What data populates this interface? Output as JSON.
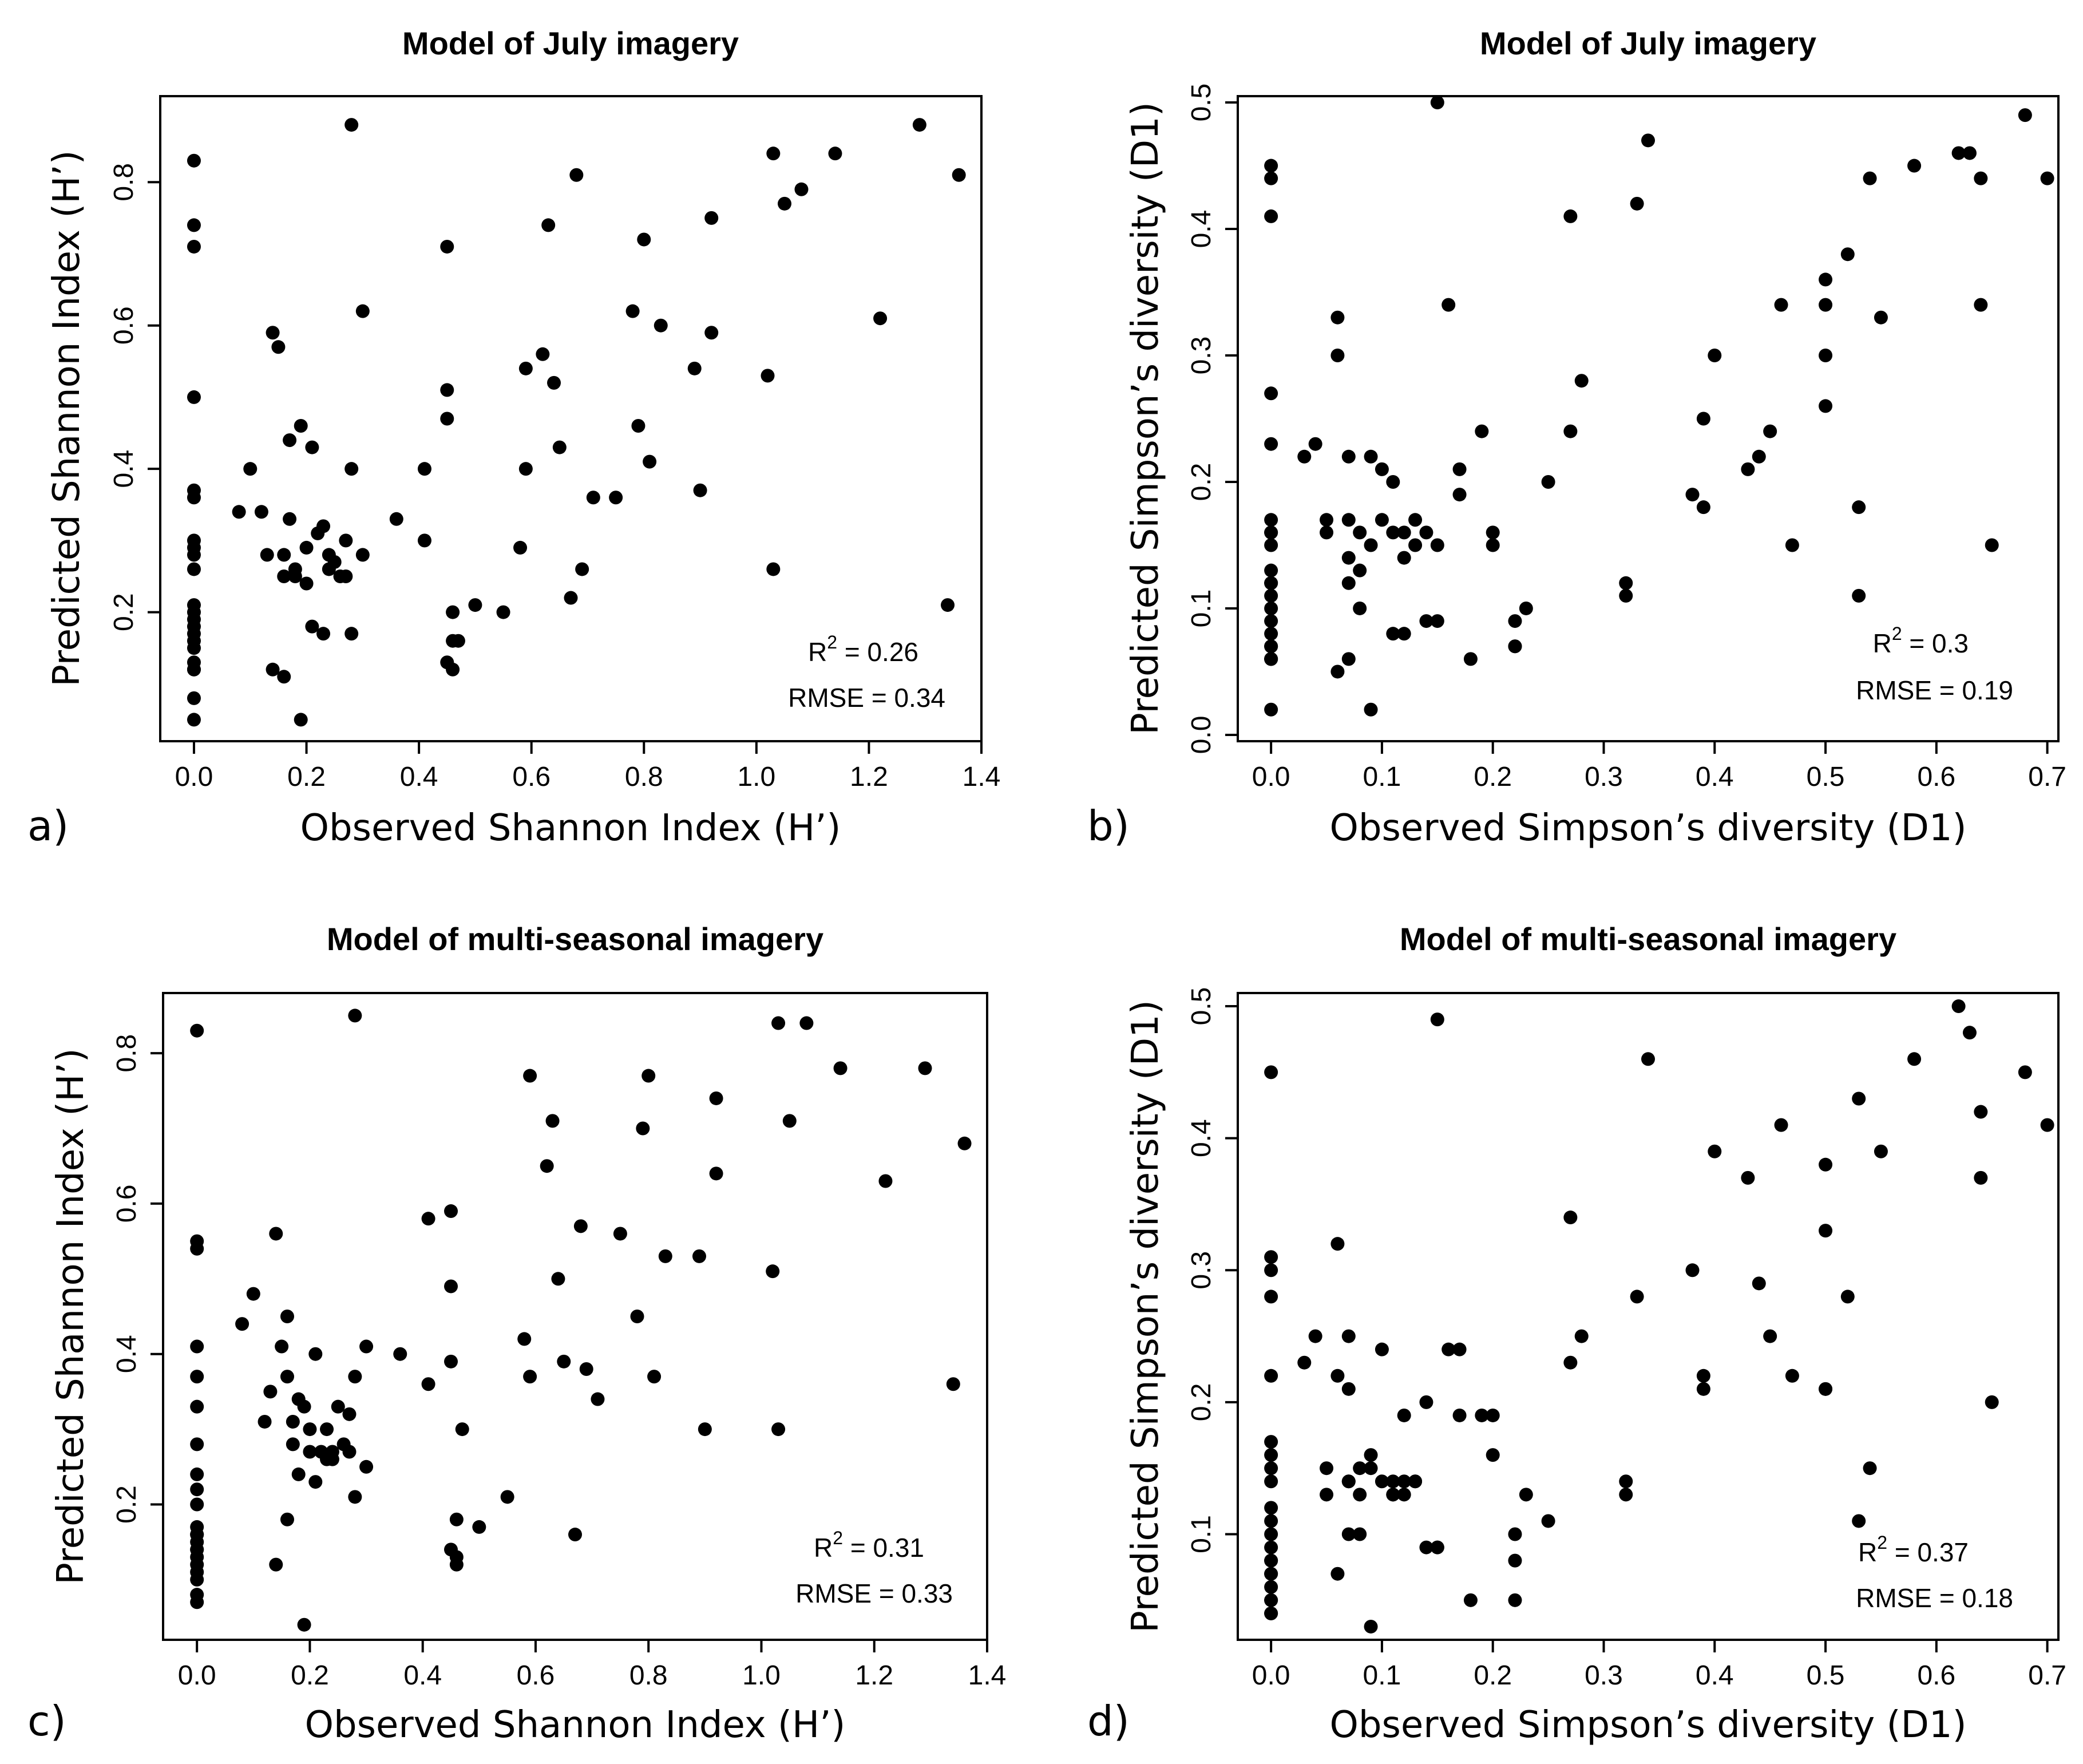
{
  "figure": {
    "panels": [
      "a",
      "b",
      "c",
      "d"
    ]
  },
  "chart_data": [
    {
      "type": "scatter",
      "panel_label": "a)",
      "title": "Model of July imagery",
      "xlabel": "Observed Shannon Index (H’)",
      "ylabel": "Predicted Shannon Index (H’)",
      "xlim": [
        -0.06,
        1.4
      ],
      "ylim": [
        0.02,
        0.92
      ],
      "xticks": [
        0.0,
        0.2,
        0.4,
        0.6,
        0.8,
        1.0,
        1.2,
        1.4
      ],
      "xtick_labels": [
        "0.0",
        "0.2",
        "0.4",
        "0.6",
        "0.8",
        "1.0",
        "1.2",
        "1.4"
      ],
      "yticks": [
        0.2,
        0.4,
        0.6,
        0.8
      ],
      "ytick_labels": [
        "0.2",
        "0.4",
        "0.6",
        "0.8"
      ],
      "stats": {
        "r2_label": "R",
        "r2_sup": "2",
        "r2_value": " = 0.26",
        "rmse": "RMSE = 0.34"
      },
      "x": [
        0,
        0,
        0,
        0,
        0,
        0,
        0,
        0,
        0,
        0,
        0,
        0,
        0,
        0,
        0,
        0,
        0,
        0,
        0,
        0,
        0,
        0,
        0.08,
        0.1,
        0.12,
        0.13,
        0.14,
        0.14,
        0.15,
        0.16,
        0.16,
        0.16,
        0.17,
        0.17,
        0.18,
        0.18,
        0.19,
        0.19,
        0.2,
        0.2,
        0.21,
        0.21,
        0.22,
        0.23,
        0.23,
        0.24,
        0.24,
        0.25,
        0.26,
        0.27,
        0.27,
        0.28,
        0.28,
        0.28,
        0.3,
        0.3,
        0.36,
        0.41,
        0.41,
        0.45,
        0.45,
        0.45,
        0.45,
        0.46,
        0.46,
        0.46,
        0.47,
        0.5,
        0.55,
        0.58,
        0.59,
        0.59,
        0.62,
        0.63,
        0.64,
        0.65,
        0.67,
        0.68,
        0.69,
        0.71,
        0.75,
        0.78,
        0.79,
        0.8,
        0.81,
        0.83,
        0.89,
        0.9,
        0.92,
        0.92,
        1.02,
        1.03,
        1.03,
        1.05,
        1.08,
        1.14,
        1.22,
        1.29,
        1.34,
        1.36
      ],
      "y": [
        0.83,
        0.74,
        0.71,
        0.5,
        0.37,
        0.36,
        0.3,
        0.29,
        0.28,
        0.26,
        0.21,
        0.2,
        0.19,
        0.18,
        0.17,
        0.16,
        0.15,
        0.13,
        0.12,
        0.12,
        0.08,
        0.05,
        0.34,
        0.4,
        0.34,
        0.28,
        0.59,
        0.12,
        0.57,
        0.11,
        0.28,
        0.25,
        0.44,
        0.33,
        0.26,
        0.25,
        0.46,
        0.05,
        0.29,
        0.24,
        0.43,
        0.18,
        0.31,
        0.32,
        0.17,
        0.28,
        0.26,
        0.27,
        0.25,
        0.3,
        0.25,
        0.88,
        0.4,
        0.17,
        0.62,
        0.28,
        0.33,
        0.4,
        0.3,
        0.71,
        0.51,
        0.47,
        0.13,
        0.2,
        0.16,
        0.12,
        0.16,
        0.21,
        0.2,
        0.29,
        0.54,
        0.4,
        0.56,
        0.74,
        0.52,
        0.43,
        0.22,
        0.81,
        0.26,
        0.36,
        0.36,
        0.62,
        0.46,
        0.72,
        0.41,
        0.6,
        0.54,
        0.37,
        0.75,
        0.59,
        0.53,
        0.84,
        0.26,
        0.77,
        0.79,
        0.84,
        0.61,
        0.88,
        0.21,
        0.81
      ]
    },
    {
      "type": "scatter",
      "panel_label": "b)",
      "title": "Model of July imagery",
      "xlabel": "Observed Simpson’s diversity (D1)",
      "ylabel": "Predicted Simpson’s diversity (D1)",
      "xlim": [
        -0.03,
        0.71
      ],
      "ylim": [
        -0.005,
        0.505
      ],
      "xticks": [
        0.0,
        0.1,
        0.2,
        0.3,
        0.4,
        0.5,
        0.6,
        0.7
      ],
      "xtick_labels": [
        "0.0",
        "0.1",
        "0.2",
        "0.3",
        "0.4",
        "0.5",
        "0.6",
        "0.7"
      ],
      "yticks": [
        0.0,
        0.1,
        0.2,
        0.3,
        0.4,
        0.5
      ],
      "ytick_labels": [
        "0.0",
        "0.1",
        "0.2",
        "0.3",
        "0.4",
        "0.5"
      ],
      "stats": {
        "r2_label": "R",
        "r2_sup": "2",
        "r2_value": " = 0.3",
        "rmse": "RMSE = 0.19"
      },
      "x": [
        0,
        0,
        0,
        0,
        0,
        0,
        0,
        0,
        0,
        0,
        0,
        0,
        0,
        0,
        0,
        0,
        0,
        0,
        0,
        0,
        0,
        0,
        0.03,
        0.04,
        0.05,
        0.05,
        0.06,
        0.06,
        0.06,
        0.07,
        0.07,
        0.07,
        0.07,
        0.07,
        0.08,
        0.08,
        0.08,
        0.09,
        0.09,
        0.09,
        0.1,
        0.1,
        0.11,
        0.11,
        0.11,
        0.12,
        0.12,
        0.12,
        0.13,
        0.13,
        0.14,
        0.14,
        0.15,
        0.15,
        0.15,
        0.16,
        0.17,
        0.17,
        0.18,
        0.19,
        0.2,
        0.2,
        0.22,
        0.22,
        0.22,
        0.23,
        0.25,
        0.27,
        0.27,
        0.28,
        0.32,
        0.32,
        0.33,
        0.34,
        0.38,
        0.39,
        0.39,
        0.4,
        0.43,
        0.44,
        0.45,
        0.46,
        0.47,
        0.5,
        0.5,
        0.5,
        0.5,
        0.52,
        0.53,
        0.53,
        0.54,
        0.55,
        0.58,
        0.62,
        0.63,
        0.64,
        0.64,
        0.65,
        0.68,
        0.7
      ],
      "y": [
        0.45,
        0.44,
        0.41,
        0.27,
        0.23,
        0.17,
        0.16,
        0.16,
        0.15,
        0.13,
        0.12,
        0.11,
        0.1,
        0.09,
        0.08,
        0.07,
        0.07,
        0.06,
        0.06,
        0.02,
        0.06,
        0.12,
        0.22,
        0.23,
        0.17,
        0.16,
        0.33,
        0.3,
        0.05,
        0.22,
        0.17,
        0.14,
        0.12,
        0.06,
        0.16,
        0.13,
        0.1,
        0.22,
        0.15,
        0.02,
        0.21,
        0.17,
        0.2,
        0.08,
        0.16,
        0.14,
        0.16,
        0.08,
        0.17,
        0.15,
        0.16,
        0.09,
        0.09,
        0.5,
        0.15,
        0.34,
        0.21,
        0.19,
        0.06,
        0.24,
        0.16,
        0.15,
        0.09,
        0.07,
        0.07,
        0.1,
        0.2,
        0.41,
        0.24,
        0.28,
        0.11,
        0.12,
        0.42,
        0.47,
        0.19,
        0.18,
        0.25,
        0.3,
        0.21,
        0.22,
        0.24,
        0.34,
        0.15,
        0.34,
        0.36,
        0.26,
        0.3,
        0.38,
        0.18,
        0.11,
        0.44,
        0.33,
        0.45,
        0.46,
        0.46,
        0.44,
        0.34,
        0.15,
        0.49,
        0.44
      ]
    },
    {
      "type": "scatter",
      "panel_label": "c)",
      "title": "Model of multi-seasonal imagery",
      "xlabel": "Observed Shannon Index (H’)",
      "ylabel": "Predicted Shannon Index (H’)",
      "xlim": [
        -0.06,
        1.4
      ],
      "ylim": [
        0.02,
        0.88
      ],
      "xticks": [
        0.0,
        0.2,
        0.4,
        0.6,
        0.8,
        1.0,
        1.2,
        1.4
      ],
      "xtick_labels": [
        "0.0",
        "0.2",
        "0.4",
        "0.6",
        "0.8",
        "1.0",
        "1.2",
        "1.4"
      ],
      "yticks": [
        0.2,
        0.4,
        0.6,
        0.8
      ],
      "ytick_labels": [
        "0.2",
        "0.4",
        "0.6",
        "0.8"
      ],
      "stats": {
        "r2_label": "R",
        "r2_sup": "2",
        "r2_value": " = 0.31",
        "rmse": "RMSE = 0.33"
      },
      "x": [
        0,
        0,
        0,
        0,
        0,
        0,
        0,
        0,
        0,
        0,
        0,
        0,
        0,
        0,
        0,
        0,
        0,
        0,
        0,
        0,
        0,
        0,
        0.08,
        0.1,
        0.12,
        0.13,
        0.14,
        0.14,
        0.15,
        0.16,
        0.16,
        0.16,
        0.17,
        0.17,
        0.18,
        0.18,
        0.19,
        0.19,
        0.2,
        0.2,
        0.21,
        0.21,
        0.22,
        0.23,
        0.23,
        0.24,
        0.24,
        0.25,
        0.26,
        0.27,
        0.27,
        0.28,
        0.28,
        0.28,
        0.3,
        0.3,
        0.36,
        0.41,
        0.41,
        0.45,
        0.45,
        0.45,
        0.45,
        0.46,
        0.46,
        0.46,
        0.47,
        0.5,
        0.55,
        0.58,
        0.59,
        0.59,
        0.62,
        0.63,
        0.64,
        0.65,
        0.67,
        0.68,
        0.69,
        0.71,
        0.75,
        0.78,
        0.79,
        0.8,
        0.81,
        0.83,
        0.89,
        0.9,
        0.92,
        0.92,
        1.02,
        1.03,
        1.03,
        1.05,
        1.08,
        1.14,
        1.22,
        1.29,
        1.34,
        1.36
      ],
      "y": [
        0.83,
        0.55,
        0.54,
        0.41,
        0.37,
        0.33,
        0.28,
        0.24,
        0.22,
        0.2,
        0.17,
        0.16,
        0.16,
        0.15,
        0.14,
        0.14,
        0.13,
        0.12,
        0.11,
        0.1,
        0.08,
        0.07,
        0.44,
        0.48,
        0.31,
        0.35,
        0.56,
        0.12,
        0.41,
        0.18,
        0.45,
        0.37,
        0.31,
        0.28,
        0.34,
        0.24,
        0.33,
        0.04,
        0.3,
        0.27,
        0.4,
        0.23,
        0.27,
        0.3,
        0.26,
        0.27,
        0.26,
        0.33,
        0.28,
        0.32,
        0.27,
        0.85,
        0.37,
        0.21,
        0.41,
        0.25,
        0.4,
        0.58,
        0.36,
        0.59,
        0.49,
        0.39,
        0.14,
        0.18,
        0.13,
        0.12,
        0.3,
        0.17,
        0.21,
        0.42,
        0.77,
        0.37,
        0.65,
        0.71,
        0.5,
        0.39,
        0.16,
        0.57,
        0.38,
        0.34,
        0.56,
        0.45,
        0.7,
        0.77,
        0.37,
        0.53,
        0.53,
        0.3,
        0.74,
        0.64,
        0.51,
        0.84,
        0.3,
        0.71,
        0.84,
        0.78,
        0.63,
        0.78,
        0.36,
        0.68
      ]
    },
    {
      "type": "scatter",
      "panel_label": "d)",
      "title": "Model of multi-seasonal imagery",
      "xlabel": "Observed Simpson’s diversity (D1)",
      "ylabel": "Predicted Simpson’s diversity (D1)",
      "xlim": [
        -0.03,
        0.71
      ],
      "ylim": [
        0.02,
        0.51
      ],
      "xticks": [
        0.0,
        0.1,
        0.2,
        0.3,
        0.4,
        0.5,
        0.6,
        0.7
      ],
      "xtick_labels": [
        "0.0",
        "0.1",
        "0.2",
        "0.3",
        "0.4",
        "0.5",
        "0.6",
        "0.7"
      ],
      "yticks": [
        0.1,
        0.2,
        0.3,
        0.4,
        0.5
      ],
      "ytick_labels": [
        "0.1",
        "0.2",
        "0.3",
        "0.4",
        "0.5"
      ],
      "stats": {
        "r2_label": "R",
        "r2_sup": "2",
        "r2_value": " = 0.37",
        "rmse": "RMSE = 0.18"
      },
      "x": [
        0,
        0,
        0,
        0,
        0,
        0,
        0,
        0,
        0,
        0,
        0,
        0,
        0,
        0,
        0,
        0,
        0,
        0,
        0,
        0,
        0,
        0,
        0.03,
        0.04,
        0.05,
        0.05,
        0.06,
        0.06,
        0.06,
        0.07,
        0.07,
        0.07,
        0.07,
        0.07,
        0.08,
        0.08,
        0.08,
        0.09,
        0.09,
        0.09,
        0.1,
        0.1,
        0.11,
        0.11,
        0.11,
        0.12,
        0.12,
        0.12,
        0.13,
        0.13,
        0.14,
        0.14,
        0.15,
        0.15,
        0.15,
        0.16,
        0.17,
        0.17,
        0.18,
        0.19,
        0.2,
        0.2,
        0.22,
        0.22,
        0.22,
        0.23,
        0.25,
        0.27,
        0.27,
        0.28,
        0.32,
        0.32,
        0.33,
        0.34,
        0.38,
        0.39,
        0.39,
        0.4,
        0.43,
        0.44,
        0.45,
        0.46,
        0.47,
        0.5,
        0.5,
        0.5,
        0.5,
        0.52,
        0.53,
        0.53,
        0.54,
        0.55,
        0.58,
        0.62,
        0.63,
        0.64,
        0.64,
        0.65,
        0.68,
        0.7
      ],
      "y": [
        0.45,
        0.31,
        0.3,
        0.28,
        0.22,
        0.17,
        0.16,
        0.15,
        0.14,
        0.12,
        0.11,
        0.1,
        0.09,
        0.08,
        0.08,
        0.07,
        0.07,
        0.06,
        0.05,
        0.05,
        0.04,
        0.04,
        0.23,
        0.25,
        0.13,
        0.15,
        0.32,
        0.22,
        0.07,
        0.25,
        0.21,
        0.14,
        0.1,
        0.14,
        0.15,
        0.13,
        0.1,
        0.16,
        0.15,
        0.03,
        0.24,
        0.14,
        0.14,
        0.13,
        0.13,
        0.14,
        0.19,
        0.13,
        0.14,
        0.14,
        0.2,
        0.09,
        0.09,
        0.49,
        0.09,
        0.24,
        0.19,
        0.24,
        0.05,
        0.19,
        0.16,
        0.19,
        0.1,
        0.08,
        0.05,
        0.13,
        0.11,
        0.23,
        0.34,
        0.25,
        0.13,
        0.14,
        0.28,
        0.46,
        0.3,
        0.22,
        0.21,
        0.39,
        0.37,
        0.29,
        0.25,
        0.41,
        0.22,
        0.21,
        0.21,
        0.38,
        0.33,
        0.28,
        0.43,
        0.11,
        0.15,
        0.39,
        0.46,
        0.5,
        0.48,
        0.42,
        0.37,
        0.2,
        0.45,
        0.41
      ]
    }
  ]
}
